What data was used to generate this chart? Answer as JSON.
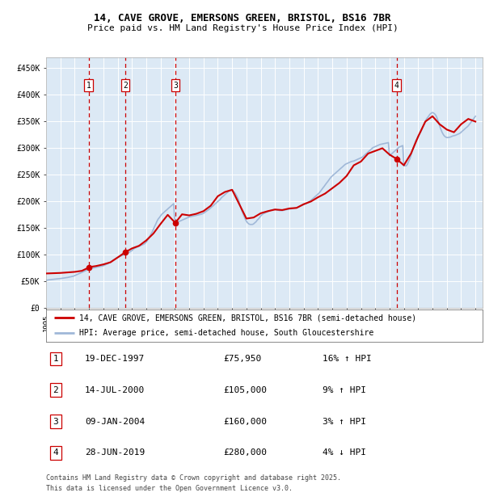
{
  "title1": "14, CAVE GROVE, EMERSONS GREEN, BRISTOL, BS16 7BR",
  "title2": "Price paid vs. HM Land Registry's House Price Index (HPI)",
  "background_color": "#ffffff",
  "plot_bg_color": "#dce9f5",
  "grid_color": "#ffffff",
  "hpi_line_color": "#a0b8d8",
  "price_line_color": "#cc0000",
  "sale_marker_color": "#cc0000",
  "vline_color": "#cc0000",
  "ylim": [
    0,
    470000
  ],
  "yticks": [
    0,
    50000,
    100000,
    150000,
    200000,
    250000,
    300000,
    350000,
    400000,
    450000
  ],
  "ytick_labels": [
    "£0",
    "£50K",
    "£100K",
    "£150K",
    "£200K",
    "£250K",
    "£300K",
    "£350K",
    "£400K",
    "£450K"
  ],
  "xlim_start": 1995.0,
  "xlim_end": 2025.5,
  "xticks": [
    1995,
    1996,
    1997,
    1998,
    1999,
    2000,
    2001,
    2002,
    2003,
    2004,
    2005,
    2006,
    2007,
    2008,
    2009,
    2010,
    2011,
    2012,
    2013,
    2014,
    2015,
    2016,
    2017,
    2018,
    2019,
    2020,
    2021,
    2022,
    2023,
    2024,
    2025
  ],
  "legend_line1": "14, CAVE GROVE, EMERSONS GREEN, BRISTOL, BS16 7BR (semi-detached house)",
  "legend_line2": "HPI: Average price, semi-detached house, South Gloucestershire",
  "sales": [
    {
      "num": 1,
      "date": "19-DEC-1997",
      "price": 75950,
      "pct": "16%",
      "dir": "↑",
      "year": 1997.97
    },
    {
      "num": 2,
      "date": "14-JUL-2000",
      "price": 105000,
      "pct": "9%",
      "dir": "↑",
      "year": 2000.54
    },
    {
      "num": 3,
      "date": "09-JAN-2004",
      "price": 160000,
      "pct": "3%",
      "dir": "↑",
      "year": 2004.03
    },
    {
      "num": 4,
      "date": "28-JUN-2019",
      "price": 280000,
      "pct": "4%",
      "dir": "↓",
      "year": 2019.49
    }
  ],
  "footer1": "Contains HM Land Registry data © Crown copyright and database right 2025.",
  "footer2": "This data is licensed under the Open Government Licence v3.0.",
  "hpi_data": {
    "years": [
      1995.0,
      1995.08,
      1995.17,
      1995.25,
      1995.33,
      1995.42,
      1995.5,
      1995.58,
      1995.67,
      1995.75,
      1995.83,
      1995.92,
      1996.0,
      1996.08,
      1996.17,
      1996.25,
      1996.33,
      1996.42,
      1996.5,
      1996.58,
      1996.67,
      1996.75,
      1996.83,
      1996.92,
      1997.0,
      1997.08,
      1997.17,
      1997.25,
      1997.33,
      1997.42,
      1997.5,
      1997.58,
      1997.67,
      1997.75,
      1997.83,
      1997.92,
      1998.0,
      1998.08,
      1998.17,
      1998.25,
      1998.33,
      1998.42,
      1998.5,
      1998.58,
      1998.67,
      1998.75,
      1998.83,
      1998.92,
      1999.0,
      1999.08,
      1999.17,
      1999.25,
      1999.33,
      1999.42,
      1999.5,
      1999.58,
      1999.67,
      1999.75,
      1999.83,
      1999.92,
      2000.0,
      2000.08,
      2000.17,
      2000.25,
      2000.33,
      2000.42,
      2000.5,
      2000.58,
      2000.67,
      2000.75,
      2000.83,
      2000.92,
      2001.0,
      2001.08,
      2001.17,
      2001.25,
      2001.33,
      2001.42,
      2001.5,
      2001.58,
      2001.67,
      2001.75,
      2001.83,
      2001.92,
      2002.0,
      2002.08,
      2002.17,
      2002.25,
      2002.33,
      2002.42,
      2002.5,
      2002.58,
      2002.67,
      2002.75,
      2002.83,
      2002.92,
      2003.0,
      2003.08,
      2003.17,
      2003.25,
      2003.33,
      2003.42,
      2003.5,
      2003.58,
      2003.67,
      2003.75,
      2003.83,
      2003.92,
      2004.0,
      2004.08,
      2004.17,
      2004.25,
      2004.33,
      2004.42,
      2004.5,
      2004.58,
      2004.67,
      2004.75,
      2004.83,
      2004.92,
      2005.0,
      2005.08,
      2005.17,
      2005.25,
      2005.33,
      2005.42,
      2005.5,
      2005.58,
      2005.67,
      2005.75,
      2005.83,
      2005.92,
      2006.0,
      2006.08,
      2006.17,
      2006.25,
      2006.33,
      2006.42,
      2006.5,
      2006.58,
      2006.67,
      2006.75,
      2006.83,
      2006.92,
      2007.0,
      2007.08,
      2007.17,
      2007.25,
      2007.33,
      2007.42,
      2007.5,
      2007.58,
      2007.67,
      2007.75,
      2007.83,
      2007.92,
      2008.0,
      2008.08,
      2008.17,
      2008.25,
      2008.33,
      2008.42,
      2008.5,
      2008.58,
      2008.67,
      2008.75,
      2008.83,
      2008.92,
      2009.0,
      2009.08,
      2009.17,
      2009.25,
      2009.33,
      2009.42,
      2009.5,
      2009.58,
      2009.67,
      2009.75,
      2009.83,
      2009.92,
      2010.0,
      2010.08,
      2010.17,
      2010.25,
      2010.33,
      2010.42,
      2010.5,
      2010.58,
      2010.67,
      2010.75,
      2010.83,
      2010.92,
      2011.0,
      2011.08,
      2011.17,
      2011.25,
      2011.33,
      2011.42,
      2011.5,
      2011.58,
      2011.67,
      2011.75,
      2011.83,
      2011.92,
      2012.0,
      2012.08,
      2012.17,
      2012.25,
      2012.33,
      2012.42,
      2012.5,
      2012.58,
      2012.67,
      2012.75,
      2012.83,
      2012.92,
      2013.0,
      2013.08,
      2013.17,
      2013.25,
      2013.33,
      2013.42,
      2013.5,
      2013.58,
      2013.67,
      2013.75,
      2013.83,
      2013.92,
      2014.0,
      2014.08,
      2014.17,
      2014.25,
      2014.33,
      2014.42,
      2014.5,
      2014.58,
      2014.67,
      2014.75,
      2014.83,
      2014.92,
      2015.0,
      2015.08,
      2015.17,
      2015.25,
      2015.33,
      2015.42,
      2015.5,
      2015.58,
      2015.67,
      2015.75,
      2015.83,
      2015.92,
      2016.0,
      2016.08,
      2016.17,
      2016.25,
      2016.33,
      2016.42,
      2016.5,
      2016.58,
      2016.67,
      2016.75,
      2016.83,
      2016.92,
      2017.0,
      2017.08,
      2017.17,
      2017.25,
      2017.33,
      2017.42,
      2017.5,
      2017.58,
      2017.67,
      2017.75,
      2017.83,
      2017.92,
      2018.0,
      2018.08,
      2018.17,
      2018.25,
      2018.33,
      2018.42,
      2018.5,
      2018.58,
      2018.67,
      2018.75,
      2018.83,
      2018.92,
      2019.0,
      2019.08,
      2019.17,
      2019.25,
      2019.33,
      2019.42,
      2019.5,
      2019.58,
      2019.67,
      2019.75,
      2019.83,
      2019.92,
      2020.0,
      2020.08,
      2020.17,
      2020.25,
      2020.33,
      2020.42,
      2020.5,
      2020.58,
      2020.67,
      2020.75,
      2020.83,
      2020.92,
      2021.0,
      2021.08,
      2021.17,
      2021.25,
      2021.33,
      2021.42,
      2021.5,
      2021.58,
      2021.67,
      2021.75,
      2021.83,
      2021.92,
      2022.0,
      2022.08,
      2022.17,
      2022.25,
      2022.33,
      2022.42,
      2022.5,
      2022.58,
      2022.67,
      2022.75,
      2022.83,
      2022.92,
      2023.0,
      2023.08,
      2023.17,
      2023.25,
      2023.33,
      2023.42,
      2023.5,
      2023.58,
      2023.67,
      2023.75,
      2023.83,
      2023.92,
      2024.0,
      2024.08,
      2024.17,
      2024.25,
      2024.33,
      2024.42,
      2024.5,
      2024.58,
      2024.67,
      2024.75,
      2024.83,
      2024.92,
      2025.0
    ],
    "values": [
      52000,
      52500,
      53000,
      53200,
      53500,
      53800,
      54000,
      54200,
      54500,
      54800,
      55000,
      55200,
      55500,
      55800,
      56000,
      56300,
      56600,
      57000,
      57500,
      58000,
      58500,
      59000,
      59500,
      60000,
      61000,
      62000,
      63000,
      64000,
      65000,
      66000,
      67000,
      68000,
      69000,
      70000,
      71000,
      72000,
      73000,
      74000,
      74500,
      75000,
      75500,
      76000,
      76500,
      77000,
      77500,
      78000,
      78500,
      79000,
      79500,
      80500,
      81500,
      82500,
      83500,
      85000,
      86500,
      88000,
      89500,
      91000,
      92500,
      94000,
      95000,
      96000,
      97000,
      98000,
      99000,
      100000,
      101000,
      102000,
      103000,
      104000,
      105000,
      106500,
      108000,
      110000,
      112000,
      113000,
      114000,
      115000,
      116000,
      117000,
      118000,
      119000,
      120000,
      121500,
      124000,
      127000,
      131000,
      135000,
      139000,
      143000,
      148000,
      153000,
      158000,
      163000,
      167000,
      170000,
      173000,
      176000,
      178000,
      180000,
      182000,
      184000,
      186000,
      188000,
      190000,
      192000,
      194000,
      196000,
      157000,
      158000,
      160000,
      162000,
      163000,
      164000,
      165000,
      166000,
      167000,
      168000,
      169000,
      170000,
      171000,
      171500,
      172000,
      172500,
      173000,
      173500,
      174000,
      174500,
      175000,
      175500,
      176000,
      177000,
      178000,
      179500,
      181000,
      182500,
      184000,
      186000,
      188000,
      190000,
      192000,
      194000,
      196000,
      198000,
      200000,
      202000,
      204000,
      207000,
      209000,
      211000,
      213000,
      215000,
      217000,
      219000,
      221000,
      222000,
      221000,
      219000,
      217000,
      214000,
      210000,
      205000,
      198000,
      191000,
      183000,
      178000,
      173000,
      167000,
      163000,
      160000,
      158000,
      157000,
      157000,
      157000,
      158000,
      160000,
      162000,
      165000,
      167000,
      170000,
      173000,
      175000,
      177000,
      178000,
      179000,
      180000,
      181000,
      182000,
      183000,
      184000,
      184500,
      185000,
      185000,
      184500,
      184000,
      183500,
      183000,
      183000,
      183000,
      183500,
      184000,
      184500,
      185000,
      185500,
      186000,
      186000,
      186500,
      187000,
      187500,
      188000,
      188500,
      189000,
      190000,
      191000,
      192000,
      193000,
      194000,
      195000,
      196000,
      197500,
      199000,
      200500,
      202000,
      204000,
      206000,
      208000,
      210000,
      212000,
      214000,
      216000,
      219000,
      222000,
      225000,
      228000,
      231000,
      234000,
      237000,
      240000,
      243000,
      246000,
      248000,
      250000,
      252000,
      254000,
      256000,
      258000,
      260000,
      262000,
      264000,
      266000,
      268000,
      270000,
      271000,
      272000,
      273000,
      274000,
      275000,
      275500,
      276000,
      277000,
      278000,
      279000,
      280000,
      281000,
      282000,
      283000,
      285000,
      287000,
      289000,
      291000,
      293000,
      295000,
      297000,
      299000,
      301000,
      302000,
      303000,
      304000,
      305000,
      306000,
      307000,
      307500,
      308000,
      308500,
      309000,
      309500,
      310000,
      310500,
      286000,
      288000,
      290000,
      292000,
      294000,
      296000,
      298000,
      300000,
      302000,
      303000,
      304000,
      305000,
      267000,
      267000,
      267000,
      270000,
      275000,
      280000,
      287000,
      294000,
      302000,
      308000,
      314000,
      318000,
      322000,
      326000,
      330000,
      335000,
      340000,
      345000,
      350000,
      355000,
      358000,
      361000,
      364000,
      366000,
      367000,
      366000,
      364000,
      361000,
      356000,
      349000,
      342000,
      336000,
      330000,
      326000,
      323000,
      321000,
      320000,
      320000,
      320500,
      321000,
      322000,
      323000,
      323500,
      324000,
      325000,
      326000,
      327000,
      328000,
      330000,
      332000,
      334000,
      336000,
      338000,
      340000,
      342000,
      345000,
      348000,
      351000,
      354000,
      357000,
      360000
    ]
  },
  "price_data": {
    "years": [
      1995.0,
      1995.5,
      1996.0,
      1996.5,
      1997.0,
      1997.5,
      1997.97,
      1998.0,
      1998.5,
      1999.0,
      1999.5,
      2000.0,
      2000.54,
      2001.0,
      2001.5,
      2002.0,
      2002.5,
      2003.0,
      2003.5,
      2004.03,
      2004.5,
      2005.0,
      2005.5,
      2006.0,
      2006.5,
      2007.0,
      2007.5,
      2008.0,
      2008.5,
      2009.0,
      2009.5,
      2010.0,
      2010.5,
      2011.0,
      2011.5,
      2012.0,
      2012.5,
      2013.0,
      2013.5,
      2014.0,
      2014.5,
      2015.0,
      2015.5,
      2016.0,
      2016.5,
      2017.0,
      2017.5,
      2018.0,
      2018.5,
      2019.0,
      2019.49,
      2020.0,
      2020.5,
      2021.0,
      2021.5,
      2022.0,
      2022.5,
      2023.0,
      2023.5,
      2024.0,
      2024.5,
      2025.0
    ],
    "values": [
      65000,
      65500,
      66000,
      67000,
      68000,
      70000,
      75950,
      77000,
      79000,
      82000,
      86000,
      95000,
      105000,
      112000,
      117000,
      127000,
      140000,
      158000,
      175000,
      160000,
      176000,
      174000,
      177000,
      182000,
      192000,
      210000,
      218000,
      222000,
      195000,
      168000,
      170000,
      178000,
      182000,
      185000,
      184000,
      187000,
      188000,
      195000,
      200000,
      208000,
      215000,
      225000,
      235000,
      248000,
      268000,
      275000,
      290000,
      295000,
      300000,
      288000,
      280000,
      268000,
      290000,
      322000,
      350000,
      360000,
      345000,
      335000,
      330000,
      345000,
      355000,
      350000
    ]
  }
}
